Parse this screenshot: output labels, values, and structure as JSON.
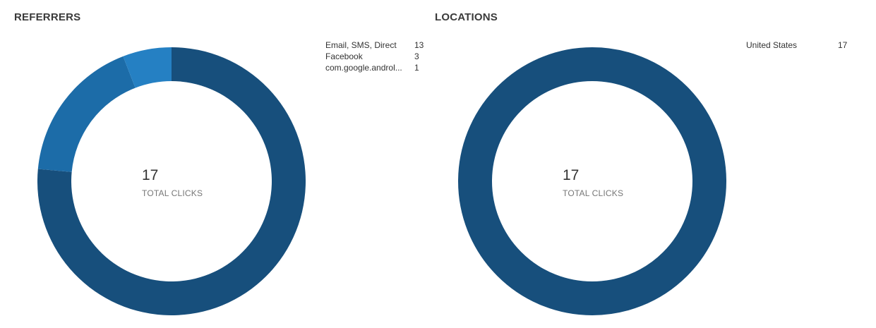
{
  "referrers": {
    "title": "REFERRERS",
    "total_value": "17",
    "total_label": "TOTAL CLICKS",
    "legend": [
      {
        "name": "Email, SMS, Direct",
        "count": "13"
      },
      {
        "name": "Facebook",
        "count": "3"
      },
      {
        "name": "com.google.androl...",
        "count": "1"
      }
    ]
  },
  "locations": {
    "title": "LOCATIONS",
    "total_value": "17",
    "total_label": "TOTAL CLICKS",
    "legend": [
      {
        "name": "United States",
        "count": "17"
      }
    ]
  },
  "colors": {
    "slice_1": "#174f7c",
    "slice_2": "#1c6ca8",
    "slice_3": "#2580c3"
  },
  "chart_data": [
    {
      "type": "pie",
      "title": "REFERRERS",
      "categories": [
        "Email, SMS, Direct",
        "Facebook",
        "com.google.androl..."
      ],
      "values": [
        13,
        3,
        1
      ],
      "center_text": "17",
      "center_label": "TOTAL CLICKS",
      "legend": "right"
    },
    {
      "type": "pie",
      "title": "LOCATIONS",
      "categories": [
        "United States"
      ],
      "values": [
        17
      ],
      "center_text": "17",
      "center_label": "TOTAL CLICKS",
      "legend": "right"
    }
  ]
}
